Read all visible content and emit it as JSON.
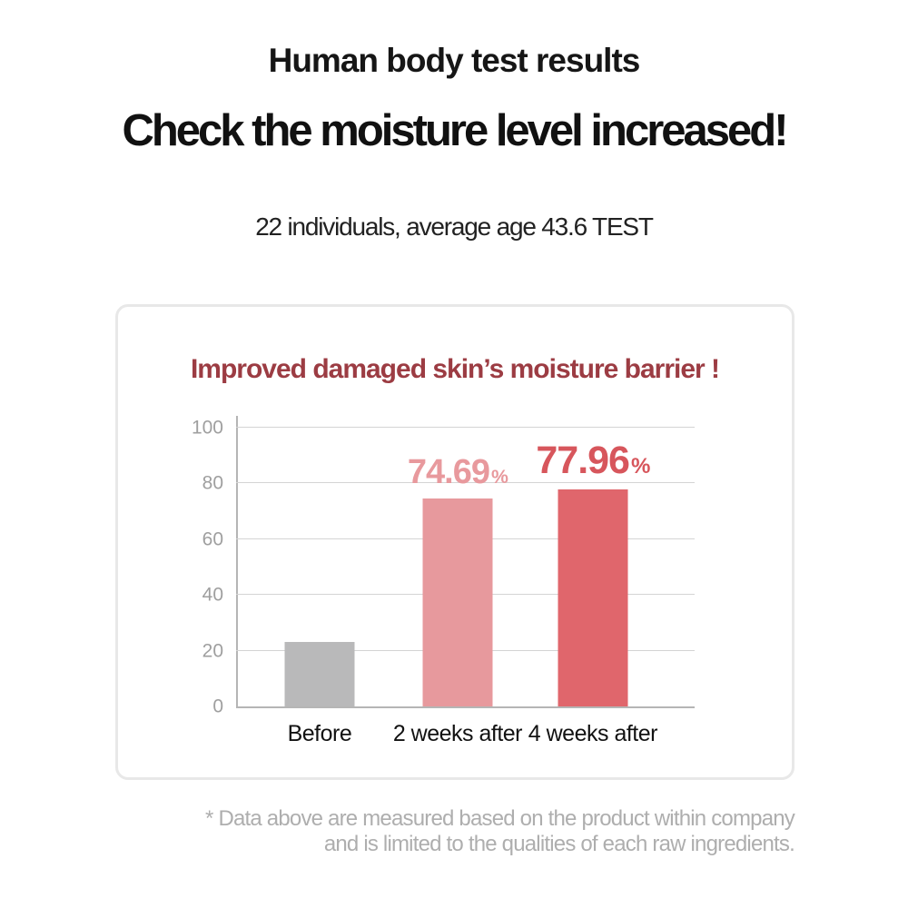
{
  "page": {
    "title_small": "Human body test results",
    "title_large": "Check the moisture level increased!",
    "subtitle": "22 individuals, average age 43.6 TEST",
    "footnote_line1": "* Data above are measured based on the product within company",
    "footnote_line2": "and is limited to the qualities of each raw ingredients."
  },
  "chart_data": {
    "type": "bar",
    "title": "Improved damaged skin’s moisture barrier !",
    "categories": [
      "Before",
      "2 weeks after",
      "4 weeks after"
    ],
    "values": [
      23,
      74.69,
      77.96
    ],
    "value_labels": [
      "",
      "74.69",
      "77.96"
    ],
    "unit": "%",
    "bar_colors": [
      "#b9b9ba",
      "#e7999d",
      "#e0666c"
    ],
    "label_colors": [
      "",
      "#e8999d",
      "#d7565c"
    ],
    "title_color": "#9c3c43",
    "ylim": [
      0,
      100
    ],
    "yticks": [
      0,
      20,
      40,
      60,
      80,
      100
    ],
    "grid": true,
    "legend": false,
    "xlabel": "",
    "ylabel": ""
  }
}
